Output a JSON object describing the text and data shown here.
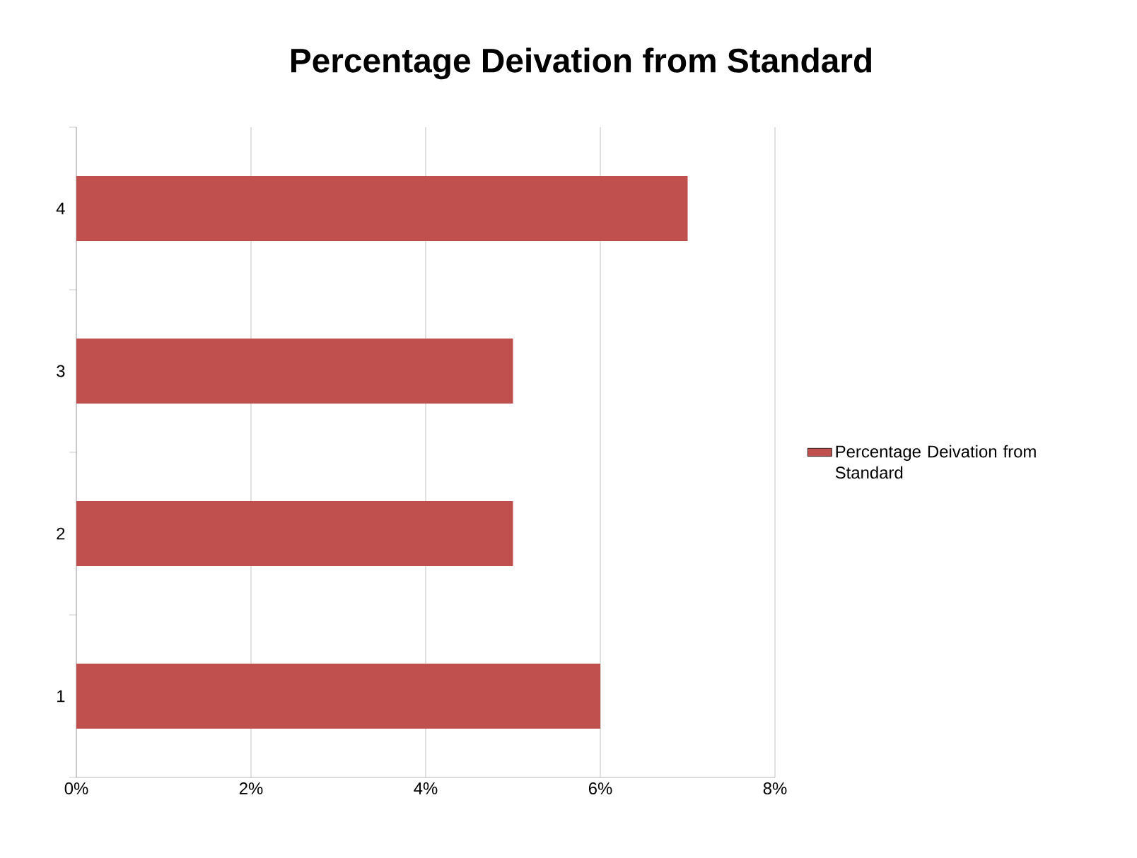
{
  "chart_data": {
    "type": "bar",
    "orientation": "horizontal",
    "title": "Percentage Deivation from Standard",
    "categories": [
      "4",
      "3",
      "2",
      "1"
    ],
    "series": [
      {
        "name": "Percentage Deivation from Standard",
        "color": "#c0504d",
        "values": [
          7,
          5,
          5,
          6
        ]
      }
    ],
    "xlim": [
      0,
      8
    ],
    "xticks": [
      {
        "value": 0,
        "label": "0%"
      },
      {
        "value": 2,
        "label": "2%"
      },
      {
        "value": 4,
        "label": "4%"
      },
      {
        "value": 6,
        "label": "6%"
      },
      {
        "value": 8,
        "label": "8%"
      }
    ],
    "grid": "x",
    "legend": "right"
  }
}
